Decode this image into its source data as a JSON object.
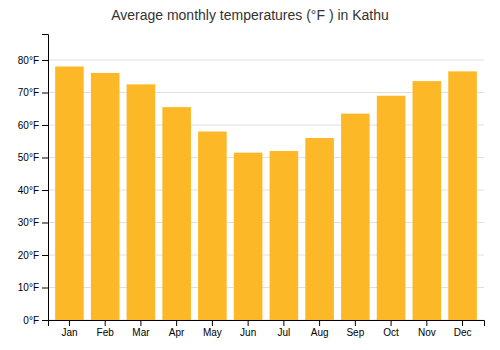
{
  "chart_data": {
    "type": "bar",
    "title": "Average monthly temperatures (°F ) in Kathu",
    "categories": [
      "Jan",
      "Feb",
      "Mar",
      "Apr",
      "May",
      "Jun",
      "Jul",
      "Aug",
      "Sep",
      "Oct",
      "Nov",
      "Dec"
    ],
    "values": [
      78,
      76,
      72.5,
      65.5,
      58,
      51.5,
      52,
      56,
      63.5,
      69,
      73.5,
      76.5
    ],
    "color": "#FDB827",
    "ylim": [
      0,
      88
    ],
    "yticks": [
      {
        "value": 0,
        "label": "0°F"
      },
      {
        "value": 10,
        "label": "10°F"
      },
      {
        "value": 20,
        "label": "20°F"
      },
      {
        "value": 30,
        "label": "30°F"
      },
      {
        "value": 40,
        "label": "40°F"
      },
      {
        "value": 50,
        "label": "50°F"
      },
      {
        "value": 60,
        "label": "60°F"
      },
      {
        "value": 70,
        "label": "70°F"
      },
      {
        "value": 80,
        "label": "80°F"
      }
    ],
    "grid": true
  }
}
